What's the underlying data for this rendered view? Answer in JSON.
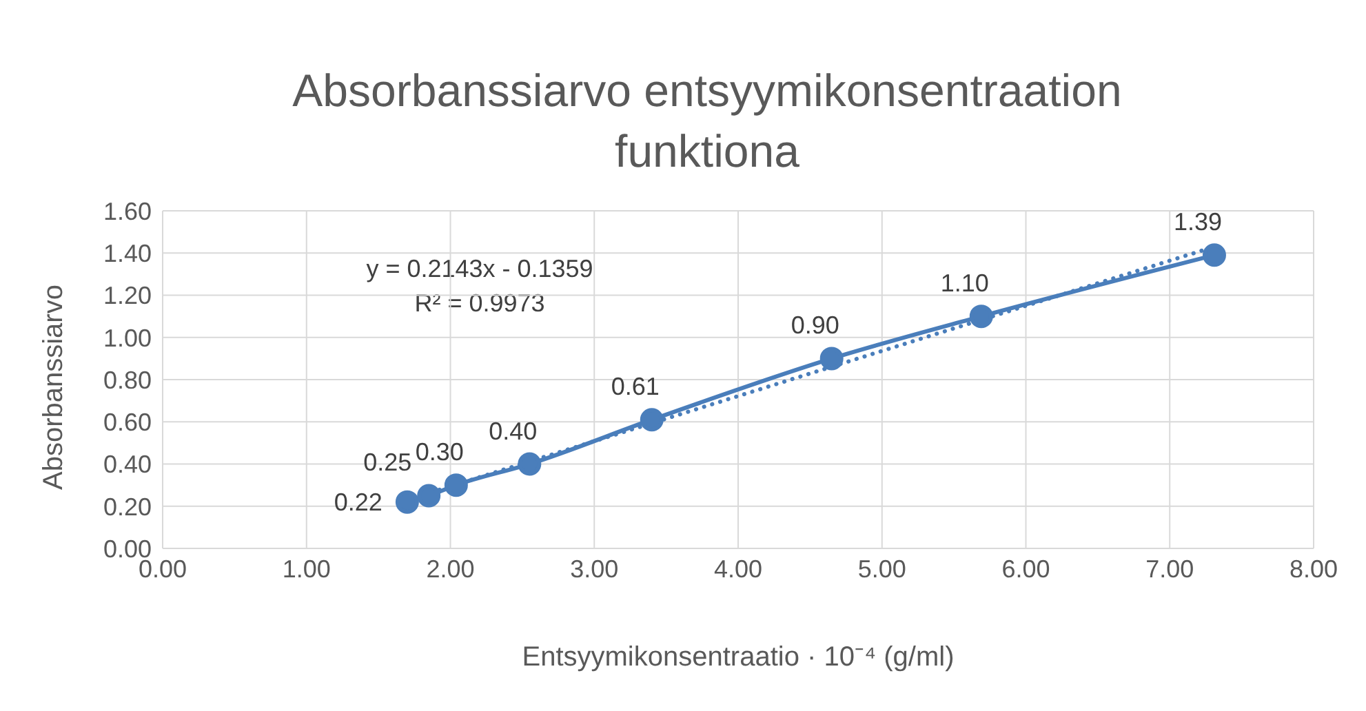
{
  "chart_data": {
    "type": "line",
    "title": "Absorbanssiarvo entsyymikonsentraation funktiona",
    "xlabel": "Entsyymikonsentraatio · 10⁻⁴ (g/ml)",
    "ylabel": "Absorbanssiarvo",
    "annotations": [
      "y = 0.2143x - 0.1359",
      "R² = 0.9973"
    ],
    "xlim": [
      0,
      8
    ],
    "xticks": [
      {
        "value": 0,
        "label": "0.00"
      },
      {
        "value": 1,
        "label": "1.00"
      },
      {
        "value": 2,
        "label": "2.00"
      },
      {
        "value": 3,
        "label": "3.00"
      },
      {
        "value": 4,
        "label": "4.00"
      },
      {
        "value": 5,
        "label": "5.00"
      },
      {
        "value": 6,
        "label": "6.00"
      },
      {
        "value": 7,
        "label": "7.00"
      },
      {
        "value": 8,
        "label": "8.00"
      }
    ],
    "ylim": [
      0,
      1.6
    ],
    "yticks": [
      {
        "value": 0,
        "label": "0.00"
      },
      {
        "value": 0.2,
        "label": "0.20"
      },
      {
        "value": 0.4,
        "label": "0.40"
      },
      {
        "value": 0.6,
        "label": "0.60"
      },
      {
        "value": 0.8,
        "label": "0.80"
      },
      {
        "value": 1,
        "label": "1.00"
      },
      {
        "value": 1.2,
        "label": "1.20"
      },
      {
        "value": 1.4,
        "label": "1.40"
      },
      {
        "value": 1.6,
        "label": "1.60"
      }
    ],
    "grid": true,
    "series": [
      {
        "color": "#4a7ebb",
        "marker": "circle",
        "line_style": "solid",
        "x": [
          1.7,
          1.85,
          2.04,
          2.55,
          3.4,
          4.65,
          5.69,
          7.31
        ],
        "values": [
          0.22,
          0.25,
          0.3,
          0.4,
          0.61,
          0.9,
          1.1,
          1.39
        ],
        "value_labels": [
          "0.22",
          "0.25",
          "0.30",
          "0.40",
          "0.61",
          "0.90",
          "1.10",
          "1.39"
        ]
      },
      {
        "color": "#4a7ebb",
        "marker": "none",
        "line_style": "dotted",
        "x": [
          1.7,
          7.31
        ],
        "values": [
          0.23,
          1.43
        ]
      }
    ]
  }
}
